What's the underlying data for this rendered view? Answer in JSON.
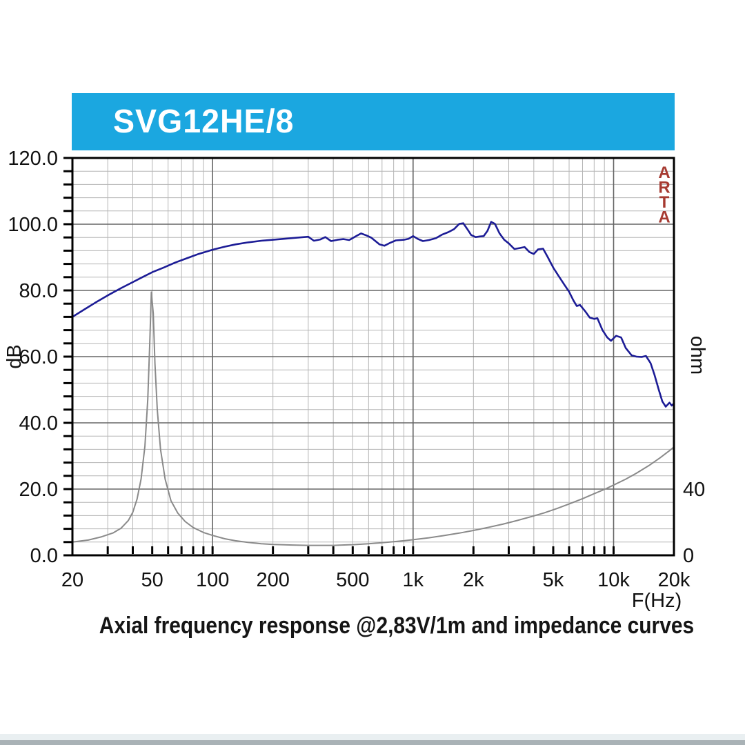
{
  "header": {
    "model": "SVG12HE/8",
    "bg_color": "#1ba7e0",
    "text_color": "#ffffff"
  },
  "watermark": {
    "text": "ARTA",
    "color": "#a63a31"
  },
  "caption": "Axial frequency response @2,83V/1m and impedance curves",
  "chart_data": {
    "type": "line",
    "title": "SVG12HE/8",
    "x_axis": {
      "label": "F(Hz)",
      "scale": "log",
      "min": 20,
      "max": 20000,
      "ticks": [
        {
          "f": 20,
          "label": "20"
        },
        {
          "f": 50,
          "label": "50"
        },
        {
          "f": 100,
          "label": "100"
        },
        {
          "f": 200,
          "label": "200"
        },
        {
          "f": 500,
          "label": "500"
        },
        {
          "f": 1000,
          "label": "1k"
        },
        {
          "f": 2000,
          "label": "2k"
        },
        {
          "f": 5000,
          "label": "5k"
        },
        {
          "f": 10000,
          "label": "10k"
        },
        {
          "f": 20000,
          "label": "20k"
        }
      ],
      "minor_gridlines": [
        30,
        40,
        50,
        60,
        70,
        80,
        90,
        200,
        300,
        400,
        500,
        600,
        700,
        800,
        900,
        2000,
        3000,
        4000,
        5000,
        6000,
        7000,
        8000,
        9000
      ],
      "major_gridlines": [
        100,
        1000,
        10000
      ]
    },
    "y_left": {
      "label": "dB",
      "min": 0,
      "max": 120,
      "major_step": 20,
      "minor_step": 4,
      "tick_labels": [
        "120.0",
        "100.0",
        "80.0",
        "60.0",
        "40.0",
        "20.0",
        "0.0"
      ]
    },
    "y_right": {
      "label": "ohm",
      "ohm_per_db": 2,
      "labels": [
        {
          "db": 20,
          "label": "40"
        },
        {
          "db": 0,
          "label": "0"
        }
      ]
    },
    "grid": {
      "minor_color": "#b5b5b5",
      "major_color": "#666666",
      "border_color": "#000000"
    },
    "series": [
      {
        "name": "frequency-response",
        "unit": "dB",
        "color": "#1c1c96",
        "width": 2.6,
        "points": [
          [
            20,
            72.0
          ],
          [
            23,
            74.3
          ],
          [
            26,
            76.3
          ],
          [
            30,
            78.5
          ],
          [
            35,
            80.7
          ],
          [
            40,
            82.5
          ],
          [
            45,
            84.1
          ],
          [
            50,
            85.5
          ],
          [
            57,
            86.9
          ],
          [
            65,
            88.4
          ],
          [
            75,
            89.8
          ],
          [
            85,
            91.0
          ],
          [
            100,
            92.3
          ],
          [
            115,
            93.2
          ],
          [
            130,
            93.9
          ],
          [
            150,
            94.5
          ],
          [
            175,
            95.0
          ],
          [
            200,
            95.3
          ],
          [
            230,
            95.6
          ],
          [
            260,
            95.9
          ],
          [
            300,
            96.2
          ],
          [
            320,
            95.0
          ],
          [
            345,
            95.4
          ],
          [
            365,
            96.1
          ],
          [
            390,
            94.9
          ],
          [
            420,
            95.3
          ],
          [
            450,
            95.5
          ],
          [
            480,
            95.2
          ],
          [
            520,
            96.4
          ],
          [
            550,
            97.2
          ],
          [
            585,
            96.6
          ],
          [
            620,
            95.9
          ],
          [
            680,
            93.9
          ],
          [
            720,
            93.5
          ],
          [
            770,
            94.4
          ],
          [
            820,
            95.1
          ],
          [
            900,
            95.3
          ],
          [
            950,
            95.6
          ],
          [
            1000,
            96.4
          ],
          [
            1060,
            95.5
          ],
          [
            1120,
            94.9
          ],
          [
            1200,
            95.2
          ],
          [
            1300,
            95.8
          ],
          [
            1400,
            96.9
          ],
          [
            1500,
            97.6
          ],
          [
            1600,
            98.5
          ],
          [
            1700,
            100.1
          ],
          [
            1780,
            100.3
          ],
          [
            1860,
            98.6
          ],
          [
            1950,
            96.7
          ],
          [
            2050,
            96.1
          ],
          [
            2150,
            96.3
          ],
          [
            2250,
            96.4
          ],
          [
            2350,
            98.0
          ],
          [
            2450,
            100.7
          ],
          [
            2560,
            100.1
          ],
          [
            2700,
            97.2
          ],
          [
            2850,
            95.3
          ],
          [
            3000,
            94.2
          ],
          [
            3200,
            92.5
          ],
          [
            3400,
            92.8
          ],
          [
            3600,
            93.1
          ],
          [
            3800,
            91.6
          ],
          [
            4000,
            91.0
          ],
          [
            4200,
            92.4
          ],
          [
            4450,
            92.6
          ],
          [
            4700,
            90.0
          ],
          [
            5000,
            86.9
          ],
          [
            5300,
            84.5
          ],
          [
            5700,
            81.6
          ],
          [
            6000,
            79.6
          ],
          [
            6300,
            77.0
          ],
          [
            6550,
            75.3
          ],
          [
            6800,
            75.6
          ],
          [
            7200,
            73.8
          ],
          [
            7600,
            71.8
          ],
          [
            8000,
            71.4
          ],
          [
            8300,
            71.6
          ],
          [
            8800,
            68.0
          ],
          [
            9300,
            65.8
          ],
          [
            9700,
            64.8
          ],
          [
            10300,
            66.3
          ],
          [
            10900,
            65.8
          ],
          [
            11500,
            62.6
          ],
          [
            12300,
            60.4
          ],
          [
            13000,
            60.0
          ],
          [
            13800,
            59.9
          ],
          [
            14500,
            60.2
          ],
          [
            15300,
            58.0
          ],
          [
            16000,
            54.5
          ],
          [
            16800,
            50.0
          ],
          [
            17500,
            46.5
          ],
          [
            18200,
            44.9
          ],
          [
            19000,
            46.1
          ],
          [
            19500,
            45.2
          ],
          [
            20000,
            45.9
          ]
        ]
      },
      {
        "name": "impedance",
        "unit": "ohm (right axis, 2 ohm per dB division)",
        "color": "#8a8a8a",
        "width": 2,
        "points": [
          [
            20,
            4.0
          ],
          [
            24,
            4.6
          ],
          [
            28,
            5.6
          ],
          [
            32,
            6.8
          ],
          [
            35,
            8.2
          ],
          [
            38,
            10.5
          ],
          [
            40,
            13.0
          ],
          [
            42,
            17.0
          ],
          [
            44,
            23.0
          ],
          [
            46,
            33.0
          ],
          [
            47.5,
            47.0
          ],
          [
            48.6,
            64.0
          ],
          [
            49.5,
            79.5
          ],
          [
            50.6,
            73.0
          ],
          [
            51.6,
            58.0
          ],
          [
            53,
            44.0
          ],
          [
            55,
            32.0
          ],
          [
            58,
            23.0
          ],
          [
            62,
            16.5
          ],
          [
            67,
            12.8
          ],
          [
            73,
            10.2
          ],
          [
            80,
            8.4
          ],
          [
            90,
            6.9
          ],
          [
            100,
            6.0
          ],
          [
            115,
            5.0
          ],
          [
            130,
            4.4
          ],
          [
            150,
            3.9
          ],
          [
            175,
            3.5
          ],
          [
            200,
            3.3
          ],
          [
            250,
            3.1
          ],
          [
            300,
            3.0
          ],
          [
            350,
            3.0
          ],
          [
            400,
            3.0
          ],
          [
            500,
            3.2
          ],
          [
            600,
            3.5
          ],
          [
            700,
            3.8
          ],
          [
            800,
            4.1
          ],
          [
            900,
            4.4
          ],
          [
            1000,
            4.7
          ],
          [
            1200,
            5.3
          ],
          [
            1400,
            5.9
          ],
          [
            1700,
            6.7
          ],
          [
            2000,
            7.5
          ],
          [
            2400,
            8.5
          ],
          [
            2800,
            9.4
          ],
          [
            3300,
            10.5
          ],
          [
            3900,
            11.7
          ],
          [
            4500,
            12.8
          ],
          [
            5200,
            14.1
          ],
          [
            6000,
            15.5
          ],
          [
            7000,
            17.1
          ],
          [
            8000,
            18.6
          ],
          [
            9000,
            19.9
          ],
          [
            10000,
            21.2
          ],
          [
            11500,
            23.0
          ],
          [
            13000,
            24.8
          ],
          [
            15000,
            27.1
          ],
          [
            17000,
            29.4
          ],
          [
            19000,
            31.6
          ],
          [
            20000,
            32.7
          ]
        ]
      }
    ]
  }
}
